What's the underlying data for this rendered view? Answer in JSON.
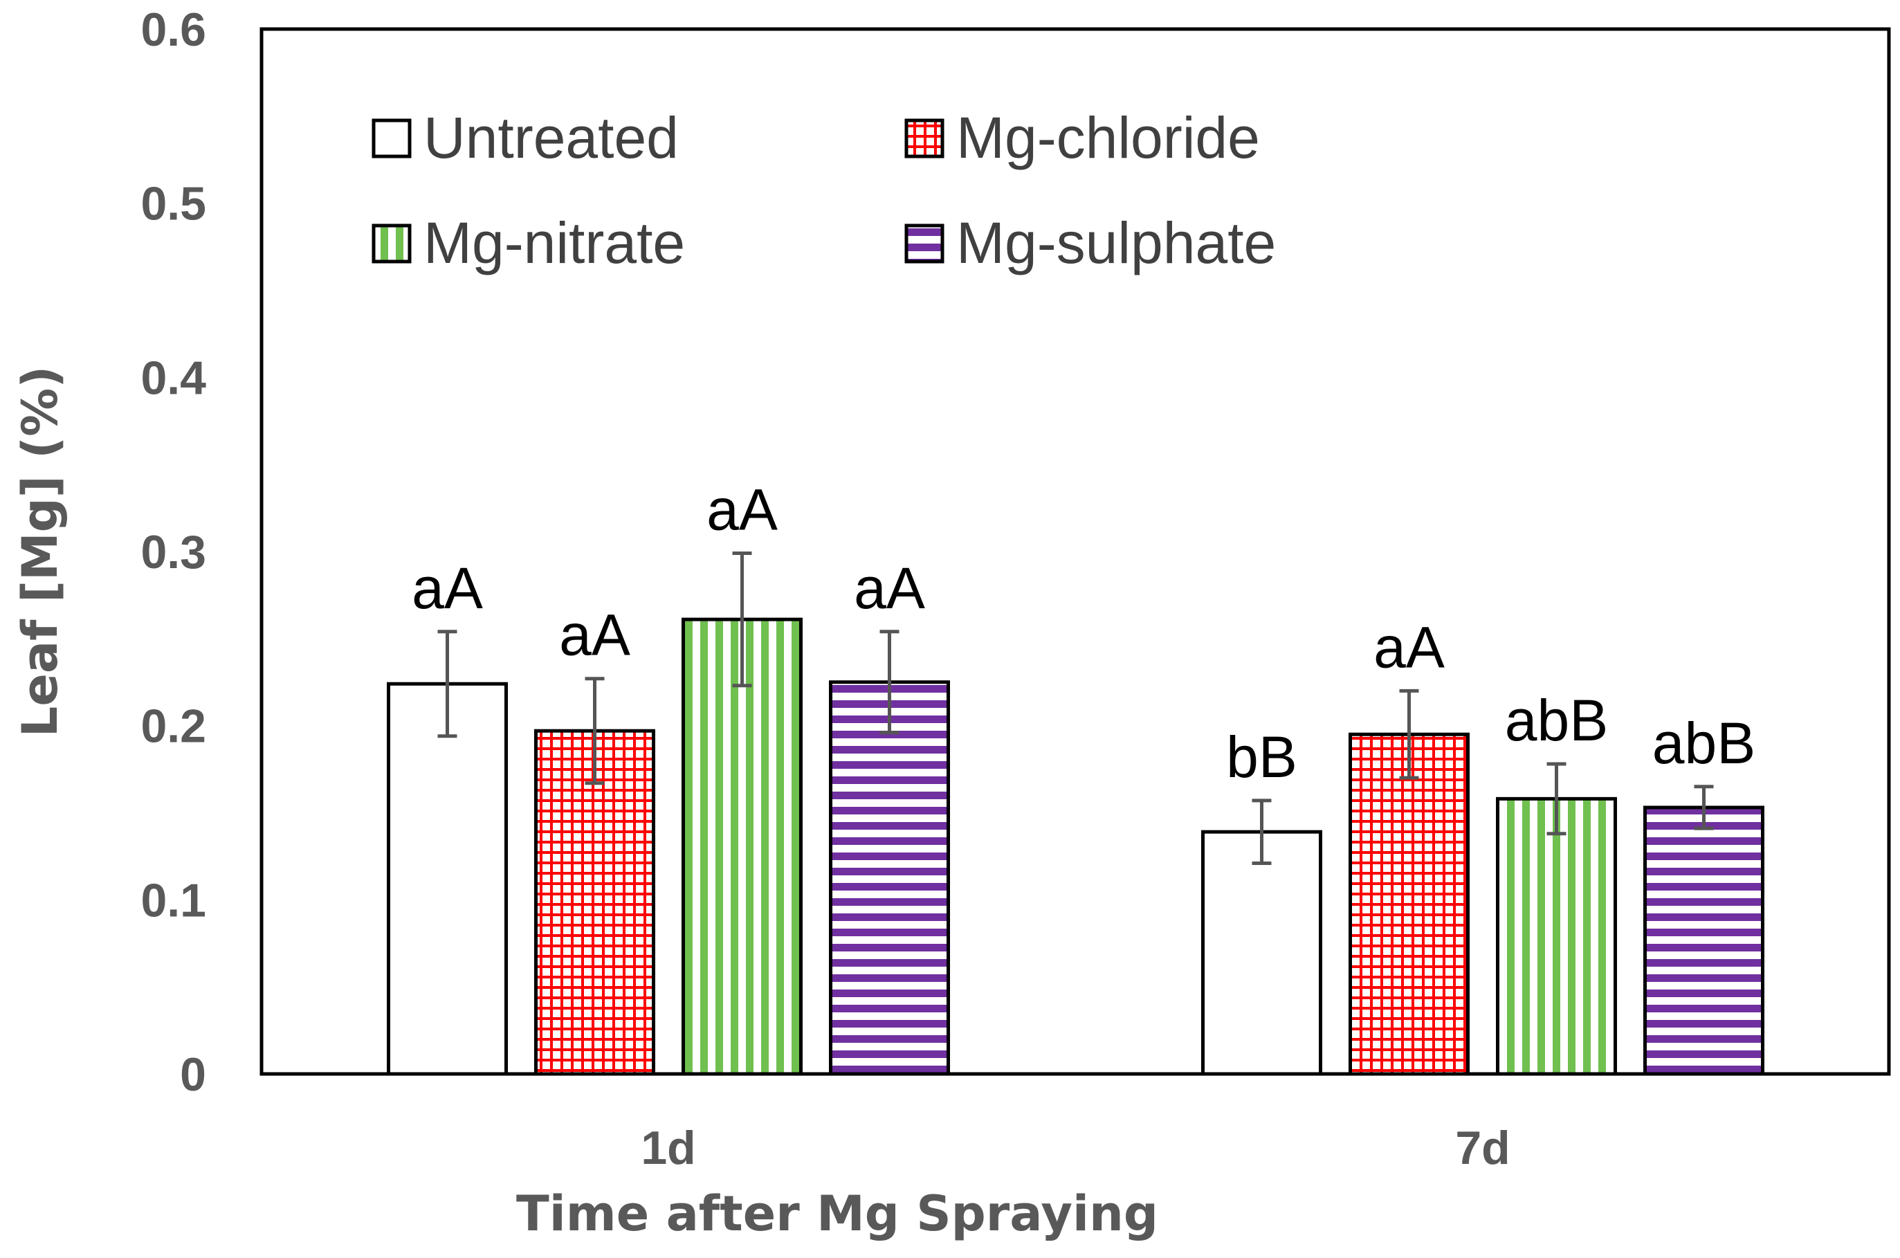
{
  "chart_data": {
    "type": "bar",
    "title": "",
    "xlabel": "Time after Mg Spraying",
    "ylabel": "Leaf [Mg] (%)",
    "ylim": [
      0,
      0.6
    ],
    "yticks": [
      0,
      0.1,
      0.2,
      0.3,
      0.4,
      0.5,
      0.6
    ],
    "ytick_labels": [
      "0",
      "0.1",
      "0.2",
      "0.3",
      "0.4",
      "0.5",
      "0.6"
    ],
    "categories": [
      "1d",
      "7d"
    ],
    "legend_position": "top-left",
    "series": [
      {
        "name": "Untreated",
        "pattern": "none",
        "color": "#000000",
        "values": [
          0.224,
          0.139
        ],
        "errors": [
          0.03,
          0.018
        ],
        "labels": [
          "aA",
          "bB"
        ]
      },
      {
        "name": "Mg-chloride",
        "pattern": "grid",
        "color": "#ff0000",
        "values": [
          0.197,
          0.195
        ],
        "errors": [
          0.03,
          0.025
        ],
        "labels": [
          "aA",
          "aA"
        ]
      },
      {
        "name": "Mg-nitrate",
        "pattern": "vertical",
        "color": "#70c050",
        "values": [
          0.261,
          0.158
        ],
        "errors": [
          0.038,
          0.02
        ],
        "labels": [
          "aA",
          "abB"
        ]
      },
      {
        "name": "Mg-sulphate",
        "pattern": "horizontal",
        "color": "#7030a0",
        "values": [
          0.225,
          0.153
        ],
        "errors": [
          0.029,
          0.012
        ],
        "labels": [
          "aA",
          "abB"
        ]
      }
    ]
  }
}
